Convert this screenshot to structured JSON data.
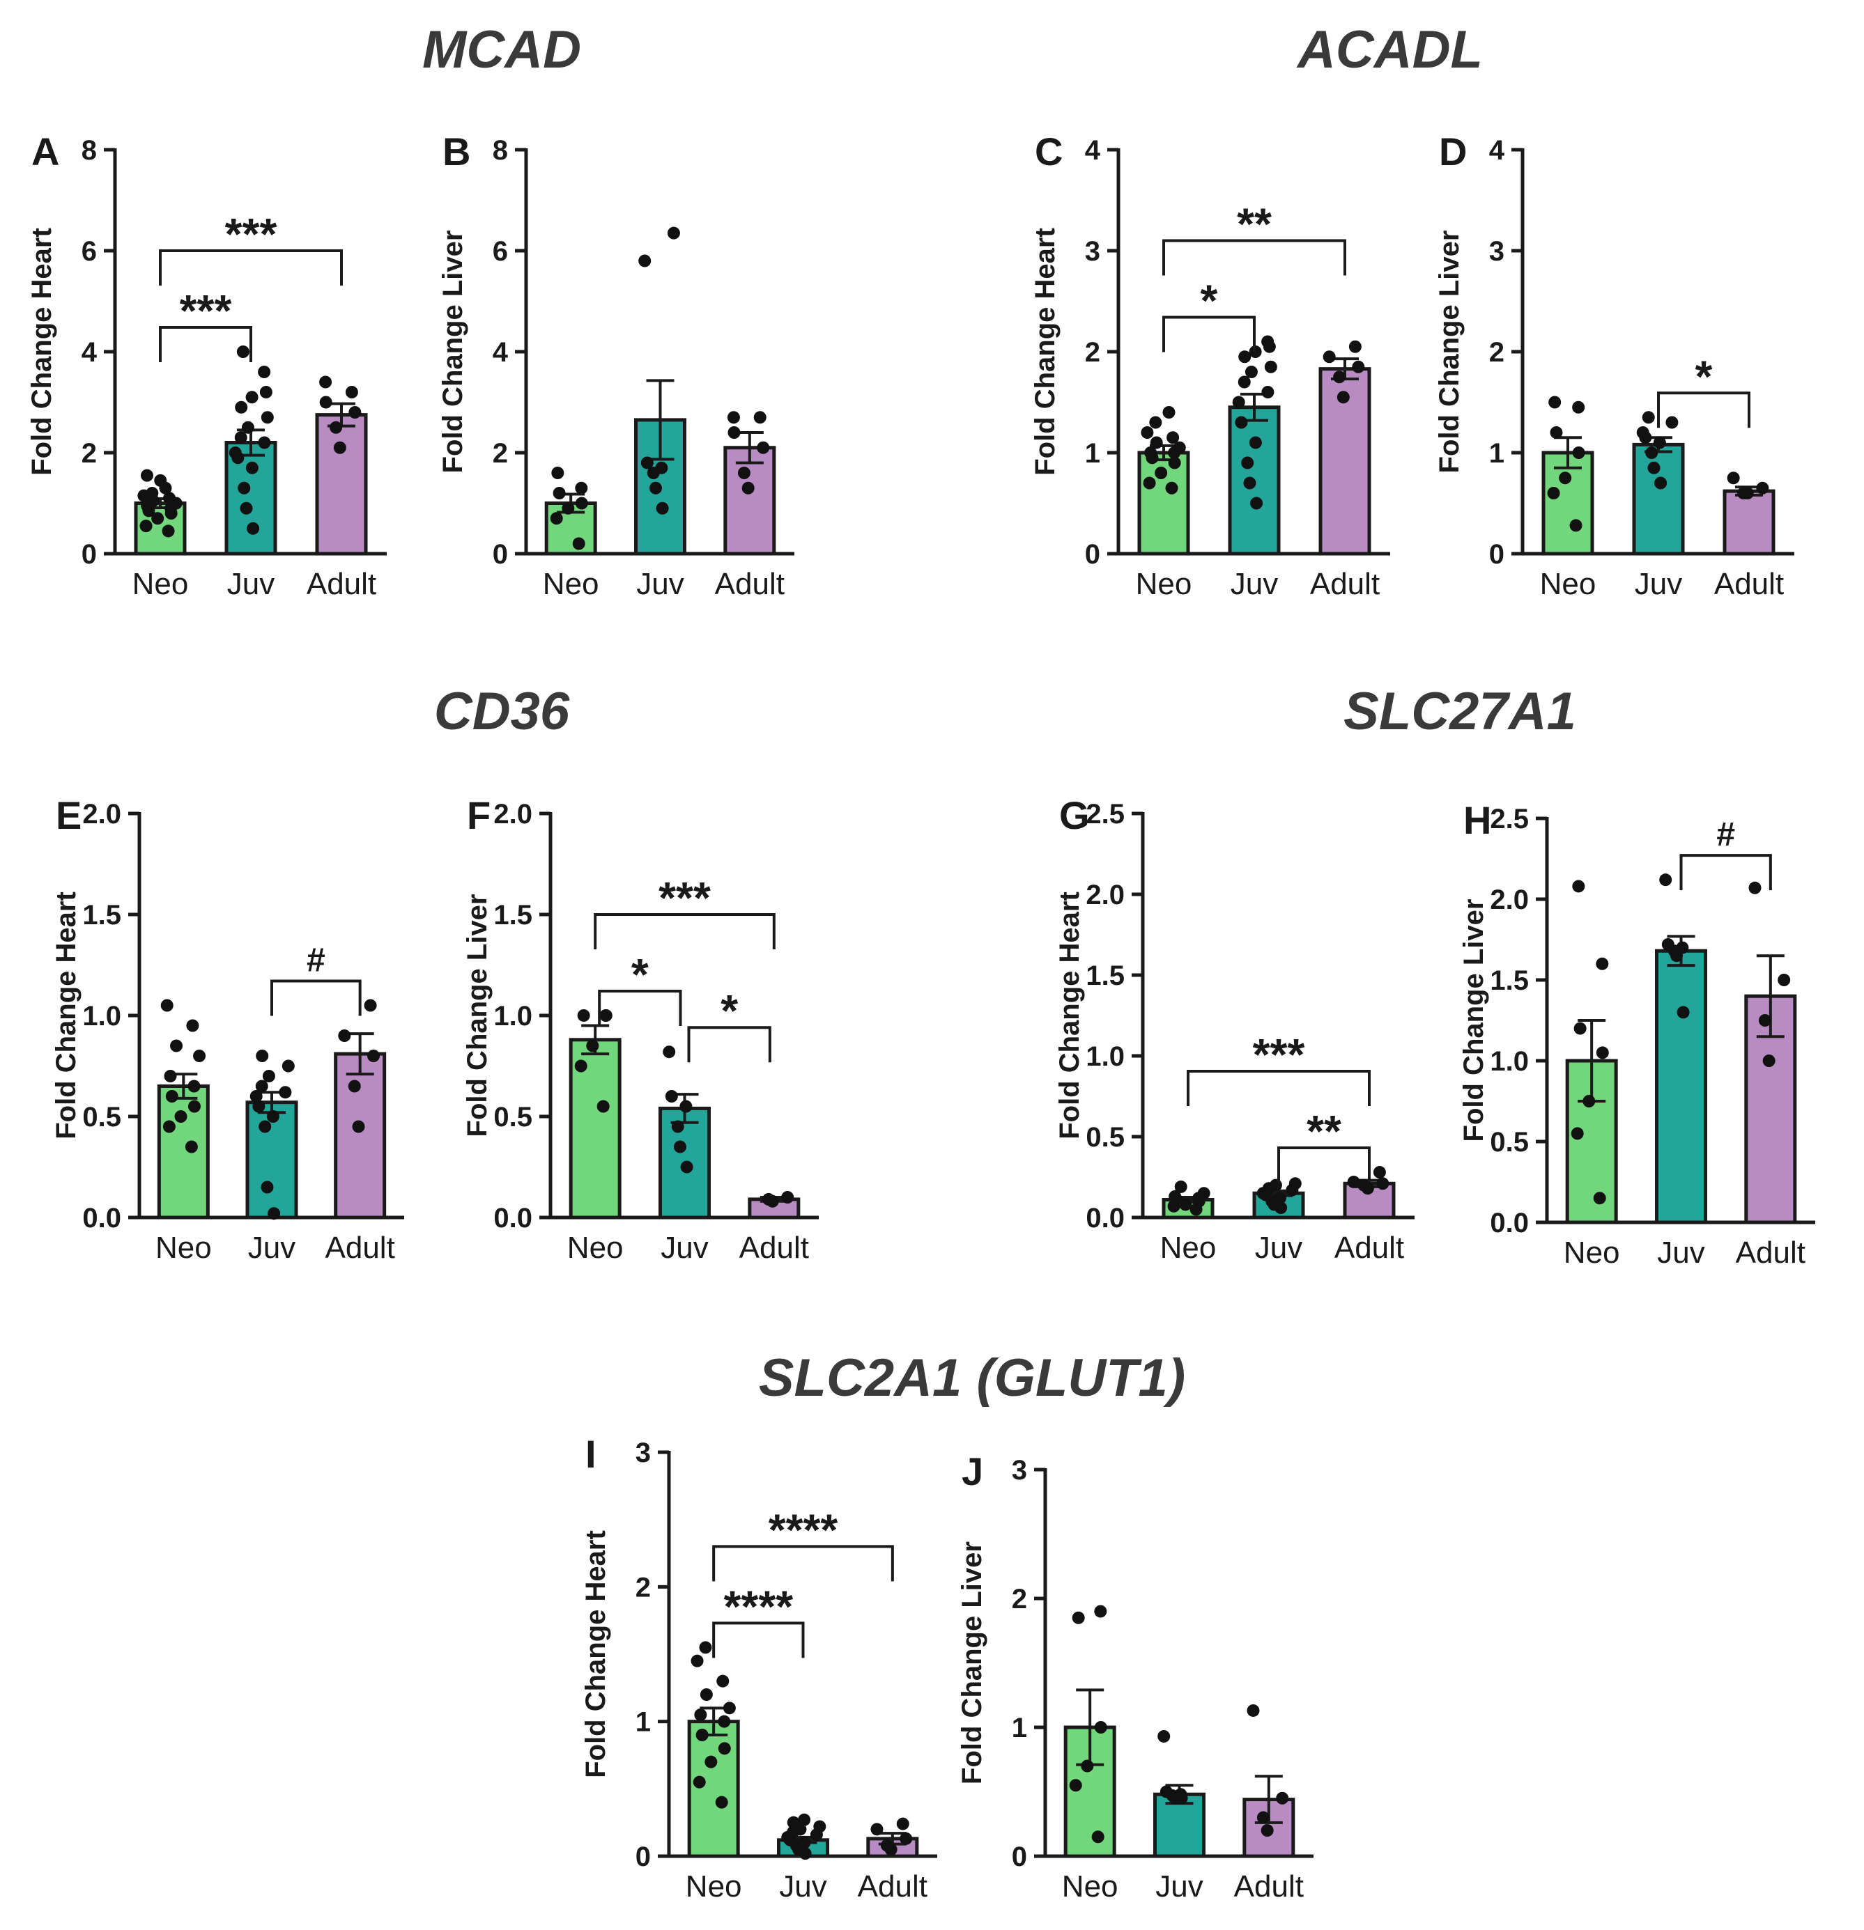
{
  "gene_titles": {
    "mcad": "MCAD",
    "acadl": "ACADL",
    "cd36": "CD36",
    "slc27a1": "SLC27A1",
    "slc2a1": "SLC2A1 (GLUT1)"
  },
  "colors": {
    "neo": "#72d67c",
    "juv": "#24a59a",
    "adult": "#b88cc3",
    "axis": "#1a1a1a"
  },
  "chart_data": [
    {
      "panel": "A",
      "type": "bar",
      "gene": "MCAD",
      "ylabel": "Fold Change Heart",
      "categories": [
        "Neo",
        "Juv",
        "Adult"
      ],
      "ylim": [
        0,
        8
      ],
      "yticks": [
        0,
        2,
        4,
        6,
        8
      ],
      "ytick_labels": [
        "0",
        "2",
        "4",
        "6",
        "8"
      ],
      "values": [
        1.0,
        2.2,
        2.75
      ],
      "errors": [
        0.09,
        0.25,
        0.22
      ],
      "points": [
        [
          0.45,
          0.55,
          0.7,
          0.8,
          0.85,
          0.9,
          0.95,
          1.0,
          1.05,
          1.1,
          1.15,
          1.2,
          1.3,
          1.45,
          1.55
        ],
        [
          0.5,
          0.9,
          1.3,
          1.7,
          1.9,
          2.0,
          2.2,
          2.3,
          2.5,
          2.7,
          2.9,
          3.1,
          3.2,
          3.6,
          4.0
        ],
        [
          2.1,
          2.5,
          2.8,
          3.0,
          3.2,
          3.4
        ]
      ],
      "brackets": [
        {
          "from": 0,
          "to": 1,
          "label": "***"
        },
        {
          "from": 0,
          "to": 2,
          "label": "***"
        }
      ]
    },
    {
      "panel": "B",
      "type": "bar",
      "gene": "MCAD",
      "ylabel": "Fold Change Liver",
      "categories": [
        "Neo",
        "Juv",
        "Adult"
      ],
      "ylim": [
        0,
        8
      ],
      "yticks": [
        0,
        2,
        4,
        6,
        8
      ],
      "ytick_labels": [
        "0",
        "2",
        "4",
        "6",
        "8"
      ],
      "values": [
        1.0,
        2.65,
        2.1
      ],
      "errors": [
        0.18,
        0.78,
        0.3
      ],
      "points": [
        [
          0.2,
          0.7,
          0.9,
          1.0,
          1.2,
          1.3,
          1.6
        ],
        [
          0.9,
          1.3,
          1.6,
          1.7,
          1.8,
          5.8,
          6.35
        ],
        [
          1.3,
          1.6,
          2.1,
          2.4,
          2.7,
          2.7
        ]
      ],
      "brackets": []
    },
    {
      "panel": "C",
      "type": "bar",
      "gene": "ACADL",
      "ylabel": "Fold Change Heart",
      "categories": [
        "Neo",
        "Juv",
        "Adult"
      ],
      "ylim": [
        0,
        4
      ],
      "yticks": [
        0,
        1,
        2,
        3,
        4
      ],
      "ytick_labels": [
        "0",
        "1",
        "2",
        "3",
        "4"
      ],
      "values": [
        1.0,
        1.45,
        1.83
      ],
      "errors": [
        0.07,
        0.13,
        0.1
      ],
      "points": [
        [
          0.65,
          0.7,
          0.8,
          0.9,
          0.95,
          1.0,
          1.0,
          1.05,
          1.1,
          1.15,
          1.2,
          1.3,
          1.4
        ],
        [
          0.5,
          0.7,
          0.9,
          1.1,
          1.3,
          1.5,
          1.6,
          1.7,
          1.8,
          1.85,
          1.95,
          2.0,
          2.05,
          2.1
        ],
        [
          1.55,
          1.75,
          1.85,
          1.95,
          2.05
        ]
      ],
      "brackets": [
        {
          "from": 0,
          "to": 1,
          "label": "*"
        },
        {
          "from": 0,
          "to": 2,
          "label": "**"
        }
      ]
    },
    {
      "panel": "D",
      "type": "bar",
      "gene": "ACADL",
      "ylabel": "Fold Change Liver",
      "categories": [
        "Neo",
        "Juv",
        "Adult"
      ],
      "ylim": [
        0,
        4
      ],
      "yticks": [
        0,
        1,
        2,
        3,
        4
      ],
      "ytick_labels": [
        "0",
        "1",
        "2",
        "3",
        "4"
      ],
      "values": [
        1.0,
        1.08,
        0.62
      ],
      "errors": [
        0.15,
        0.07,
        0.04
      ],
      "points": [
        [
          0.28,
          0.6,
          0.75,
          1.0,
          1.2,
          1.45,
          1.5
        ],
        [
          0.7,
          0.85,
          1.0,
          1.1,
          1.15,
          1.2,
          1.3,
          1.35
        ],
        [
          0.6,
          0.6,
          0.65,
          0.75
        ]
      ],
      "brackets": [
        {
          "from": 1,
          "to": 2,
          "label": "*"
        }
      ]
    },
    {
      "panel": "E",
      "type": "bar",
      "gene": "CD36",
      "ylabel": "Fold Change Heart",
      "categories": [
        "Neo",
        "Juv",
        "Adult"
      ],
      "ylim": [
        0,
        2.0
      ],
      "yticks": [
        0,
        0.5,
        1.0,
        1.5,
        2.0
      ],
      "ytick_labels": [
        "0.0",
        "0.5",
        "1.0",
        "1.5",
        "2.0"
      ],
      "values": [
        0.65,
        0.57,
        0.81
      ],
      "errors": [
        0.06,
        0.05,
        0.1
      ],
      "points": [
        [
          0.35,
          0.45,
          0.5,
          0.55,
          0.6,
          0.65,
          0.7,
          0.8,
          0.85,
          0.95,
          1.05
        ],
        [
          0.02,
          0.15,
          0.45,
          0.5,
          0.55,
          0.6,
          0.62,
          0.65,
          0.7,
          0.75,
          0.8
        ],
        [
          0.45,
          0.65,
          0.8,
          0.9,
          1.05
        ]
      ],
      "brackets": [
        {
          "from": 1,
          "to": 2,
          "label": "#"
        }
      ]
    },
    {
      "panel": "F",
      "type": "bar",
      "gene": "CD36",
      "ylabel": "Fold Change Liver",
      "categories": [
        "Neo",
        "Juv",
        "Adult"
      ],
      "ylim": [
        0,
        2.0
      ],
      "yticks": [
        0,
        0.5,
        1.0,
        1.5,
        2.0
      ],
      "ytick_labels": [
        "0.0",
        "0.5",
        "1.0",
        "1.5",
        "2.0"
      ],
      "values": [
        0.88,
        0.54,
        0.09
      ],
      "errors": [
        0.07,
        0.07,
        0.01
      ],
      "points": [
        [
          0.55,
          0.75,
          0.85,
          1.0,
          1.0,
          1.0
        ],
        [
          0.25,
          0.35,
          0.45,
          0.55,
          0.6,
          0.82
        ],
        [
          0.08,
          0.09,
          0.1
        ]
      ],
      "brackets": [
        {
          "from": 0,
          "to": 1,
          "label": "*"
        },
        {
          "from": 1,
          "to": 2,
          "label": "*"
        },
        {
          "from": 0,
          "to": 2,
          "label": "***"
        }
      ]
    },
    {
      "panel": "G",
      "type": "bar",
      "gene": "SLC27A1",
      "ylabel": "Fold Change Heart",
      "categories": [
        "Neo",
        "Juv",
        "Adult"
      ],
      "ylim": [
        0,
        2.5
      ],
      "yticks": [
        0,
        0.5,
        1.0,
        1.5,
        2.0,
        2.5
      ],
      "ytick_labels": [
        "0.0",
        "0.5",
        "1.0",
        "1.5",
        "2.0",
        "2.5"
      ],
      "values": [
        0.11,
        0.15,
        0.21
      ],
      "errors": [
        0.015,
        0.015,
        0.02
      ],
      "points": [
        [
          0.05,
          0.07,
          0.08,
          0.1,
          0.11,
          0.12,
          0.13,
          0.15,
          0.19
        ],
        [
          0.06,
          0.08,
          0.1,
          0.12,
          0.14,
          0.15,
          0.17,
          0.18,
          0.2,
          0.21
        ],
        [
          0.18,
          0.2,
          0.21,
          0.22,
          0.28
        ]
      ],
      "brackets": [
        {
          "from": 1,
          "to": 2,
          "label": "**"
        },
        {
          "from": 0,
          "to": 2,
          "label": "***"
        }
      ]
    },
    {
      "panel": "H",
      "type": "bar",
      "gene": "SLC27A1",
      "ylabel": "Fold Change Liver",
      "categories": [
        "Neo",
        "Juv",
        "Adult"
      ],
      "ylim": [
        0,
        2.5
      ],
      "yticks": [
        0,
        0.5,
        1.0,
        1.5,
        2.0,
        2.5
      ],
      "ytick_labels": [
        "0.0",
        "0.5",
        "1.0",
        "1.5",
        "2.0",
        "2.5"
      ],
      "values": [
        1.0,
        1.68,
        1.4
      ],
      "errors": [
        0.25,
        0.09,
        0.25
      ],
      "points": [
        [
          0.15,
          0.55,
          0.75,
          1.05,
          1.2,
          1.6,
          2.08
        ],
        [
          1.3,
          1.65,
          1.68,
          1.7,
          1.72,
          2.12
        ],
        [
          1.0,
          1.25,
          1.5,
          2.07
        ]
      ],
      "brackets": [
        {
          "from": 1,
          "to": 2,
          "label": "#"
        }
      ]
    },
    {
      "panel": "I",
      "type": "bar",
      "gene": "SLC2A1 (GLUT1)",
      "ylabel": "Fold Change Heart",
      "categories": [
        "Neo",
        "Juv",
        "Adult"
      ],
      "ylim": [
        0,
        3
      ],
      "yticks": [
        0,
        1,
        2,
        3
      ],
      "ytick_labels": [
        "0",
        "1",
        "2",
        "3"
      ],
      "values": [
        1.0,
        0.12,
        0.13
      ],
      "errors": [
        0.1,
        0.02,
        0.04
      ],
      "points": [
        [
          0.4,
          0.55,
          0.7,
          0.8,
          0.9,
          1.0,
          1.05,
          1.1,
          1.2,
          1.3,
          1.45,
          1.55
        ],
        [
          0.02,
          0.05,
          0.08,
          0.1,
          0.12,
          0.14,
          0.16,
          0.18,
          0.2,
          0.22,
          0.25,
          0.27
        ],
        [
          0.05,
          0.08,
          0.13,
          0.2,
          0.24
        ]
      ],
      "brackets": [
        {
          "from": 0,
          "to": 1,
          "label": "****"
        },
        {
          "from": 0,
          "to": 2,
          "label": "****"
        }
      ]
    },
    {
      "panel": "J",
      "type": "bar",
      "gene": "SLC2A1 (GLUT1)",
      "ylabel": "Fold Change Liver",
      "categories": [
        "Neo",
        "Juv",
        "Adult"
      ],
      "ylim": [
        0,
        3
      ],
      "yticks": [
        0,
        1,
        2,
        3
      ],
      "ytick_labels": [
        "0",
        "1",
        "2",
        "3"
      ],
      "values": [
        1.0,
        0.48,
        0.44
      ],
      "errors": [
        0.29,
        0.07,
        0.18
      ],
      "points": [
        [
          0.15,
          0.55,
          0.7,
          1.0,
          1.85,
          1.9
        ],
        [
          0.45,
          0.45,
          0.47,
          0.48,
          0.5,
          0.93
        ],
        [
          0.2,
          0.3,
          0.45,
          1.13
        ]
      ],
      "brackets": []
    }
  ]
}
